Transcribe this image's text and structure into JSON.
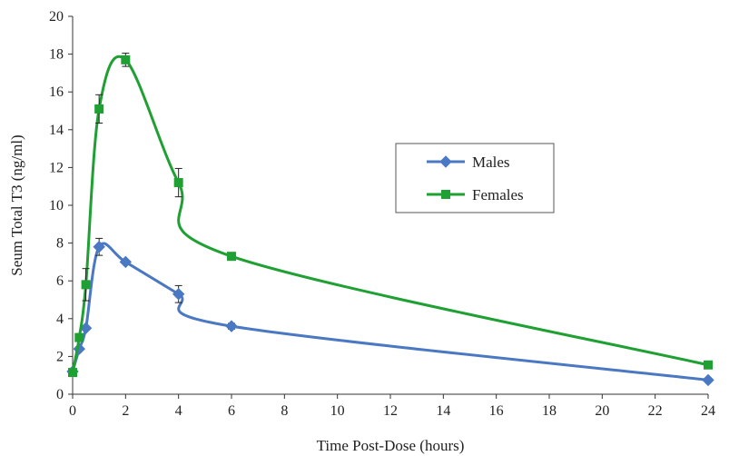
{
  "chart_data": {
    "type": "line",
    "title": "",
    "xlabel": "Time Post-Dose (hours)",
    "ylabel": "Seum Total T3 (ng/ml)",
    "xlim": [
      0,
      24
    ],
    "ylim": [
      0,
      20
    ],
    "xticks": [
      0,
      2,
      4,
      6,
      8,
      10,
      12,
      14,
      16,
      18,
      20,
      22,
      24
    ],
    "yticks": [
      0,
      2,
      4,
      6,
      8,
      10,
      12,
      14,
      16,
      18,
      20
    ],
    "grid": false,
    "legend_position": "center-right",
    "smoothed": true,
    "series": [
      {
        "name": "Males",
        "color": "#4a78c2",
        "marker": "diamond",
        "points": [
          {
            "x": 0,
            "y": 1.2,
            "err": 0
          },
          {
            "x": 0.25,
            "y": 2.4,
            "err": 0
          },
          {
            "x": 0.5,
            "y": 3.5,
            "err": 0
          },
          {
            "x": 1,
            "y": 7.8,
            "err": 0.45
          },
          {
            "x": 2,
            "y": 7.0,
            "err": 0
          },
          {
            "x": 4,
            "y": 5.3,
            "err": 0.45
          },
          {
            "x": 6,
            "y": 3.6,
            "err": 0.15
          },
          {
            "x": 24,
            "y": 0.75,
            "err": 0
          }
        ]
      },
      {
        "name": "Females",
        "color": "#1fa032",
        "marker": "square",
        "points": [
          {
            "x": 0,
            "y": 1.15,
            "err": 0
          },
          {
            "x": 0.25,
            "y": 3.0,
            "err": 0
          },
          {
            "x": 0.5,
            "y": 5.8,
            "err": 0.85
          },
          {
            "x": 1,
            "y": 15.1,
            "err": 0.75
          },
          {
            "x": 2,
            "y": 17.7,
            "err": 0.35
          },
          {
            "x": 4,
            "y": 11.2,
            "err": 0.75
          },
          {
            "x": 6,
            "y": 7.3,
            "err": 0
          },
          {
            "x": 24,
            "y": 1.55,
            "err": 0
          }
        ]
      }
    ]
  }
}
